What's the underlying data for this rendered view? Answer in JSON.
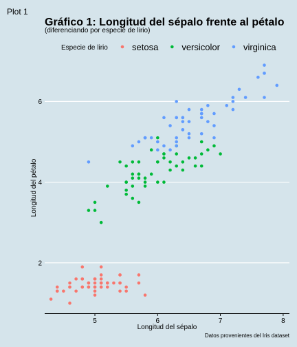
{
  "panel_label": "Plot 1",
  "chart_data": {
    "type": "scatter",
    "title": "Gráfico 1: Longitud del sépalo frente al pétalo",
    "subtitle": "(diferenciando por especie de lirio)",
    "xlabel": "Longitud del sépalo",
    "ylabel": "Longitud del pétalo",
    "caption": "Datos provenientes del Iris dataset",
    "legend_title": "Especie de lirio",
    "legend_position": "top",
    "xlim": [
      4.2,
      8.1
    ],
    "ylim": [
      0.75,
      7.15
    ],
    "x_ticks": [
      5,
      6,
      7,
      8
    ],
    "y_ticks": [
      2,
      4,
      6
    ],
    "grid": "horizontal",
    "series": [
      {
        "name": "setosa",
        "color": "#f8766d",
        "points": [
          [
            5.1,
            1.4
          ],
          [
            4.9,
            1.4
          ],
          [
            4.7,
            1.3
          ],
          [
            4.6,
            1.5
          ],
          [
            5.0,
            1.4
          ],
          [
            5.4,
            1.7
          ],
          [
            4.6,
            1.4
          ],
          [
            5.0,
            1.5
          ],
          [
            4.4,
            1.4
          ],
          [
            4.9,
            1.5
          ],
          [
            5.4,
            1.5
          ],
          [
            4.8,
            1.6
          ],
          [
            4.8,
            1.4
          ],
          [
            4.3,
            1.1
          ],
          [
            5.8,
            1.2
          ],
          [
            5.7,
            1.5
          ],
          [
            5.4,
            1.3
          ],
          [
            5.1,
            1.4
          ],
          [
            5.7,
            1.7
          ],
          [
            5.1,
            1.5
          ],
          [
            5.4,
            1.7
          ],
          [
            5.1,
            1.5
          ],
          [
            4.6,
            1.0
          ],
          [
            5.1,
            1.7
          ],
          [
            4.8,
            1.9
          ],
          [
            5.0,
            1.6
          ],
          [
            5.0,
            1.6
          ],
          [
            5.2,
            1.5
          ],
          [
            5.2,
            1.4
          ],
          [
            4.7,
            1.6
          ],
          [
            4.8,
            1.6
          ],
          [
            5.4,
            1.5
          ],
          [
            5.2,
            1.5
          ],
          [
            5.5,
            1.4
          ],
          [
            4.9,
            1.5
          ],
          [
            5.0,
            1.2
          ],
          [
            5.5,
            1.3
          ],
          [
            4.9,
            1.4
          ],
          [
            4.4,
            1.3
          ],
          [
            5.1,
            1.5
          ],
          [
            5.0,
            1.3
          ],
          [
            4.5,
            1.3
          ],
          [
            4.4,
            1.3
          ],
          [
            5.0,
            1.6
          ],
          [
            5.1,
            1.9
          ],
          [
            4.8,
            1.4
          ],
          [
            5.1,
            1.6
          ],
          [
            4.6,
            1.4
          ],
          [
            5.3,
            1.5
          ],
          [
            5.0,
            1.4
          ]
        ]
      },
      {
        "name": "versicolor",
        "color": "#00ba38",
        "points": [
          [
            7.0,
            4.7
          ],
          [
            6.4,
            4.5
          ],
          [
            6.9,
            4.9
          ],
          [
            5.5,
            4.0
          ],
          [
            6.5,
            4.6
          ],
          [
            5.7,
            4.5
          ],
          [
            6.3,
            4.7
          ],
          [
            4.9,
            3.3
          ],
          [
            6.6,
            4.6
          ],
          [
            5.2,
            3.9
          ],
          [
            5.0,
            3.5
          ],
          [
            5.9,
            4.2
          ],
          [
            6.0,
            4.0
          ],
          [
            6.1,
            4.7
          ],
          [
            5.6,
            3.6
          ],
          [
            6.7,
            4.4
          ],
          [
            5.6,
            4.5
          ],
          [
            5.8,
            4.1
          ],
          [
            6.2,
            4.5
          ],
          [
            5.6,
            3.9
          ],
          [
            5.9,
            4.8
          ],
          [
            6.1,
            4.0
          ],
          [
            6.3,
            4.9
          ],
          [
            6.1,
            4.7
          ],
          [
            6.4,
            4.3
          ],
          [
            6.6,
            4.4
          ],
          [
            6.8,
            4.8
          ],
          [
            6.7,
            5.0
          ],
          [
            6.0,
            4.5
          ],
          [
            5.7,
            3.5
          ],
          [
            5.5,
            3.8
          ],
          [
            5.5,
            3.7
          ],
          [
            5.8,
            3.9
          ],
          [
            6.0,
            5.1
          ],
          [
            5.4,
            4.5
          ],
          [
            6.0,
            4.5
          ],
          [
            6.7,
            4.7
          ],
          [
            6.3,
            4.4
          ],
          [
            5.6,
            4.1
          ],
          [
            5.5,
            4.0
          ],
          [
            5.5,
            4.4
          ],
          [
            6.1,
            4.6
          ],
          [
            5.8,
            4.0
          ],
          [
            5.0,
            3.3
          ],
          [
            5.6,
            4.2
          ],
          [
            5.7,
            4.2
          ],
          [
            5.7,
            4.2
          ],
          [
            6.2,
            4.3
          ],
          [
            5.1,
            3.0
          ],
          [
            5.7,
            4.1
          ]
        ]
      },
      {
        "name": "virginica",
        "color": "#619cff",
        "points": [
          [
            6.3,
            6.0
          ],
          [
            5.8,
            5.1
          ],
          [
            7.1,
            5.9
          ],
          [
            6.3,
            5.6
          ],
          [
            6.5,
            5.8
          ],
          [
            7.6,
            6.6
          ],
          [
            4.9,
            4.5
          ],
          [
            7.3,
            6.3
          ],
          [
            6.7,
            5.8
          ],
          [
            7.2,
            6.1
          ],
          [
            6.5,
            5.1
          ],
          [
            6.4,
            5.3
          ],
          [
            6.8,
            5.5
          ],
          [
            5.7,
            5.0
          ],
          [
            5.8,
            5.1
          ],
          [
            6.4,
            5.3
          ],
          [
            6.5,
            5.5
          ],
          [
            7.7,
            6.7
          ],
          [
            7.7,
            6.9
          ],
          [
            6.0,
            5.0
          ],
          [
            6.9,
            5.7
          ],
          [
            5.6,
            4.9
          ],
          [
            7.7,
            6.7
          ],
          [
            6.3,
            4.9
          ],
          [
            6.7,
            5.7
          ],
          [
            7.2,
            6.0
          ],
          [
            6.2,
            4.8
          ],
          [
            6.1,
            4.9
          ],
          [
            6.4,
            5.6
          ],
          [
            7.2,
            5.8
          ],
          [
            7.4,
            6.1
          ],
          [
            7.9,
            6.4
          ],
          [
            6.4,
            5.6
          ],
          [
            6.3,
            5.1
          ],
          [
            6.1,
            5.6
          ],
          [
            7.7,
            6.1
          ],
          [
            6.3,
            5.6
          ],
          [
            6.4,
            5.5
          ],
          [
            6.0,
            4.8
          ],
          [
            6.9,
            5.4
          ],
          [
            6.7,
            5.6
          ],
          [
            6.9,
            5.1
          ],
          [
            5.8,
            5.1
          ],
          [
            6.8,
            5.9
          ],
          [
            6.7,
            5.7
          ],
          [
            6.7,
            5.2
          ],
          [
            6.3,
            5.0
          ],
          [
            6.5,
            5.2
          ],
          [
            6.2,
            5.4
          ],
          [
            5.9,
            5.1
          ]
        ]
      }
    ]
  }
}
